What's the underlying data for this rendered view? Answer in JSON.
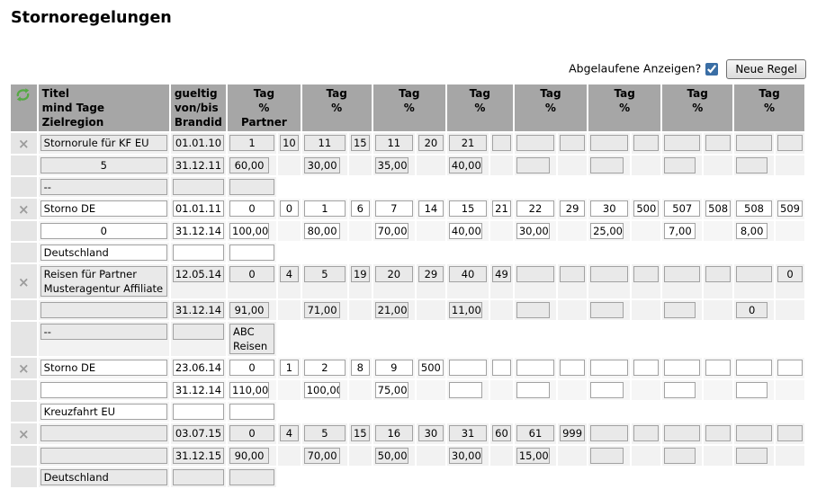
{
  "page": {
    "title": "Stornoregelungen"
  },
  "controls": {
    "expired_label": "Abgelaufene Anzeigen?",
    "expired_checked": true,
    "new_rule_label": "Neue Regel"
  },
  "colors": {
    "header_bg": "#a6a6a6",
    "input_gray": "#e9e9e9",
    "input_white": "#ffffff",
    "refresh_icon_green": "#55a944",
    "delete_icon_gray": "#9c9c9c"
  },
  "table": {
    "header": {
      "refresh_icon": "refresh-icon",
      "titel_lines": [
        "Titel",
        "mind Tage",
        "Zielregion"
      ],
      "gueltig_lines": [
        "gueltig",
        "von/bis",
        "Brandid"
      ],
      "tag_partner_lines": [
        "Tag",
        "%",
        "Partner"
      ],
      "tag_lines": [
        "Tag",
        "%"
      ],
      "tag_group_count": 8
    },
    "rules": [
      {
        "title": "Stornorule für KF EU",
        "mind_tage": "5",
        "zielregion": "--",
        "gueltig_von": "01.01.10",
        "gueltig_bis": "31.12.11",
        "brandid": "",
        "partner": "",
        "tag_von_bis": [
          [
            "1",
            "10"
          ],
          [
            "11",
            "15"
          ],
          [
            "11",
            "20"
          ],
          [
            "21",
            ""
          ],
          [
            "",
            ""
          ],
          [
            "",
            ""
          ],
          [
            "",
            ""
          ],
          [
            "",
            ""
          ]
        ],
        "prozent": [
          "60,00",
          "30,00",
          "35,00",
          "40,00",
          "",
          "",
          "",
          ""
        ]
      },
      {
        "title": "Storno DE",
        "mind_tage": "0",
        "zielregion": "Deutschland",
        "gueltig_von": "01.01.11",
        "gueltig_bis": "31.12.14",
        "brandid": "",
        "partner": "",
        "tag_von_bis": [
          [
            "0",
            "0"
          ],
          [
            "1",
            "6"
          ],
          [
            "7",
            "14"
          ],
          [
            "15",
            "21"
          ],
          [
            "22",
            "29"
          ],
          [
            "30",
            "500"
          ],
          [
            "507",
            "508"
          ],
          [
            "508",
            "509"
          ]
        ],
        "prozent": [
          "100,00",
          "80,00",
          "70,00",
          "40,00",
          "30,00",
          "25,00",
          "7,00",
          "8,00"
        ]
      },
      {
        "title": "Reisen für Partner Musteragentur Affiliate",
        "mind_tage": "",
        "zielregion": "--",
        "gueltig_von": "12.05.14",
        "gueltig_bis": "31.12.14",
        "brandid": "",
        "partner": "ABC Reisen",
        "tag_von_bis": [
          [
            "0",
            "4"
          ],
          [
            "5",
            "19"
          ],
          [
            "20",
            "29"
          ],
          [
            "40",
            "49"
          ],
          [
            "",
            ""
          ],
          [
            "",
            ""
          ],
          [
            "",
            ""
          ],
          [
            "",
            "0"
          ]
        ],
        "prozent": [
          "91,00",
          "71,00",
          "21,00",
          "11,00",
          "",
          "",
          "",
          "0"
        ]
      },
      {
        "title": "Storno DE",
        "mind_tage": "",
        "zielregion": "Kreuzfahrt EU",
        "gueltig_von": "23.06.14",
        "gueltig_bis": "31.12.14",
        "brandid": "",
        "partner": "",
        "tag_von_bis": [
          [
            "0",
            "1"
          ],
          [
            "2",
            "8"
          ],
          [
            "9",
            "500"
          ],
          [
            "",
            ""
          ],
          [
            "",
            ""
          ],
          [
            "",
            ""
          ],
          [
            "",
            ""
          ],
          [
            "",
            ""
          ]
        ],
        "prozent": [
          "110,00",
          "100,00",
          "75,00",
          "",
          "",
          "",
          "",
          ""
        ]
      },
      {
        "title": "",
        "mind_tage": "",
        "zielregion": "Deutschland",
        "gueltig_von": "03.07.15",
        "gueltig_bis": "31.12.15",
        "brandid": "",
        "partner": "",
        "tag_von_bis": [
          [
            "0",
            "4"
          ],
          [
            "5",
            "15"
          ],
          [
            "16",
            "30"
          ],
          [
            "31",
            "60"
          ],
          [
            "61",
            "999"
          ],
          [
            "",
            ""
          ],
          [
            "",
            ""
          ],
          [
            "",
            ""
          ]
        ],
        "prozent": [
          "90,00",
          "70,00",
          "50,00",
          "30,00",
          "15,00",
          "",
          "",
          ""
        ]
      }
    ]
  }
}
